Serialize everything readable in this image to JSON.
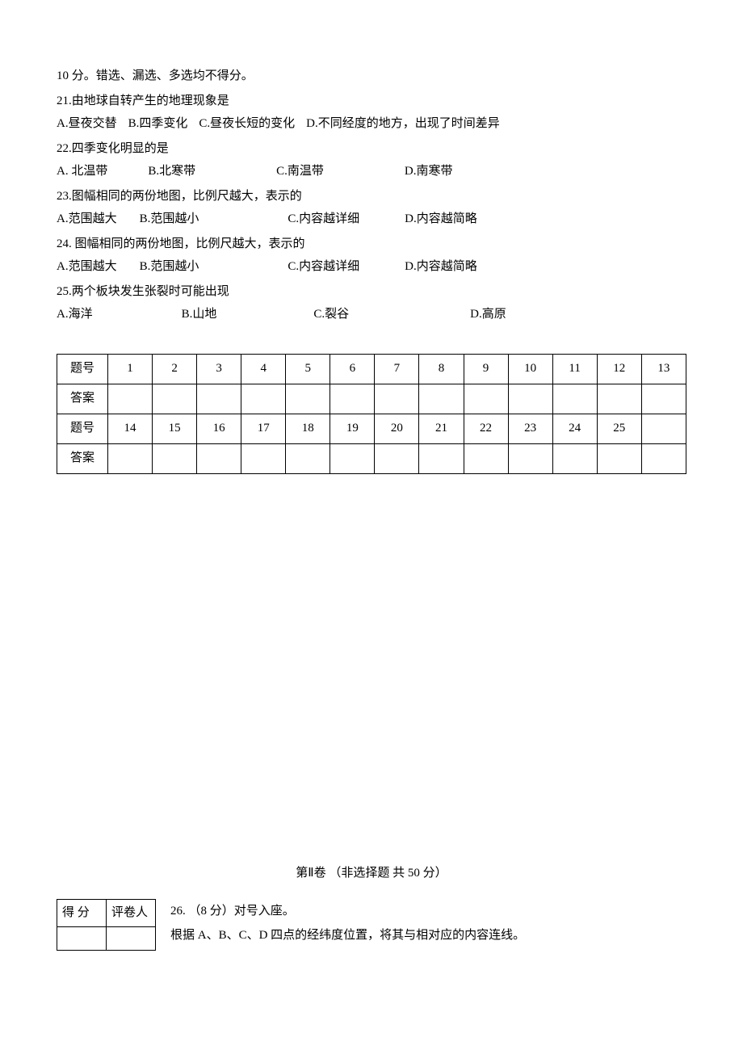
{
  "intro": "10 分。错选、漏选、多选均不得分。",
  "questions": [
    {
      "num": "21",
      "stem": "由地球自转产生的地理现象是",
      "opts": [
        {
          "label": "A.",
          "text": "昼夜交替",
          "gap": 14
        },
        {
          "label": "B.",
          "text": "四季变化",
          "gap": 14
        },
        {
          "label": "C.",
          "text": "昼夜长短的变化",
          "gap": 14
        },
        {
          "label": "D.",
          "text": "不同经度的地方，出现了时间差异",
          "gap": 0
        }
      ]
    },
    {
      "num": "22",
      "stem": "四季变化明显的是",
      "opts": [
        {
          "label": "A.",
          "text": " 北温带",
          "gap": 50
        },
        {
          "label": "B.",
          "text": "北寒带",
          "gap": 100
        },
        {
          "label": "C.",
          "text": "南温带",
          "gap": 100
        },
        {
          "label": "D.",
          "text": "南寒带",
          "gap": 0
        }
      ]
    },
    {
      "num": "23",
      "stem": "图幅相同的两份地图，比例尺越大，表示的",
      "opts": [
        {
          "label": "A.",
          "text": "范围越大",
          "gap": 28
        },
        {
          "label": "B.",
          "text": "范围越小",
          "gap": 110
        },
        {
          "label": "C.",
          "text": "内容越详细",
          "gap": 56
        },
        {
          "label": "D.",
          "text": "内容越简略",
          "gap": 0
        }
      ]
    },
    {
      "num": "24",
      "stem": " 图幅相同的两份地图，比例尺越大，表示的",
      "opts": [
        {
          "label": "A.",
          "text": "范围越大",
          "gap": 28
        },
        {
          "label": "B.",
          "text": "范围越小",
          "gap": 110
        },
        {
          "label": "C.",
          "text": "内容越详细",
          "gap": 56
        },
        {
          "label": "D.",
          "text": "内容越简略",
          "gap": 0
        }
      ]
    },
    {
      "num": "25",
      "stem": "两个板块发生张裂时可能出现",
      "opts": [
        {
          "label": "A.",
          "text": "海洋",
          "gap": 110
        },
        {
          "label": "B.",
          "text": "山地",
          "gap": 120
        },
        {
          "label": "C.",
          "text": "裂谷",
          "gap": 150
        },
        {
          "label": "D.",
          "text": "高原",
          "gap": 0
        }
      ]
    }
  ],
  "answer_table": {
    "row_labels": {
      "num": "题号",
      "ans": "答案"
    },
    "row1": [
      "1",
      "2",
      "3",
      "4",
      "5",
      "6",
      "7",
      "8",
      "9",
      "10",
      "11",
      "12",
      "13"
    ],
    "row3": [
      "14",
      "15",
      "16",
      "17",
      "18",
      "19",
      "20",
      "21",
      "22",
      "23",
      "24",
      "25",
      ""
    ]
  },
  "section2": {
    "header": "第Ⅱ卷   （非选择题 共 50 分）",
    "scorebox": {
      "score": "得 分",
      "grader": "评卷人"
    },
    "q26_line1": "26. （8 分）对号入座。",
    "q26_line2": "根据 A、B、C、D 四点的经纬度位置，将其与相对应的内容连线。"
  }
}
